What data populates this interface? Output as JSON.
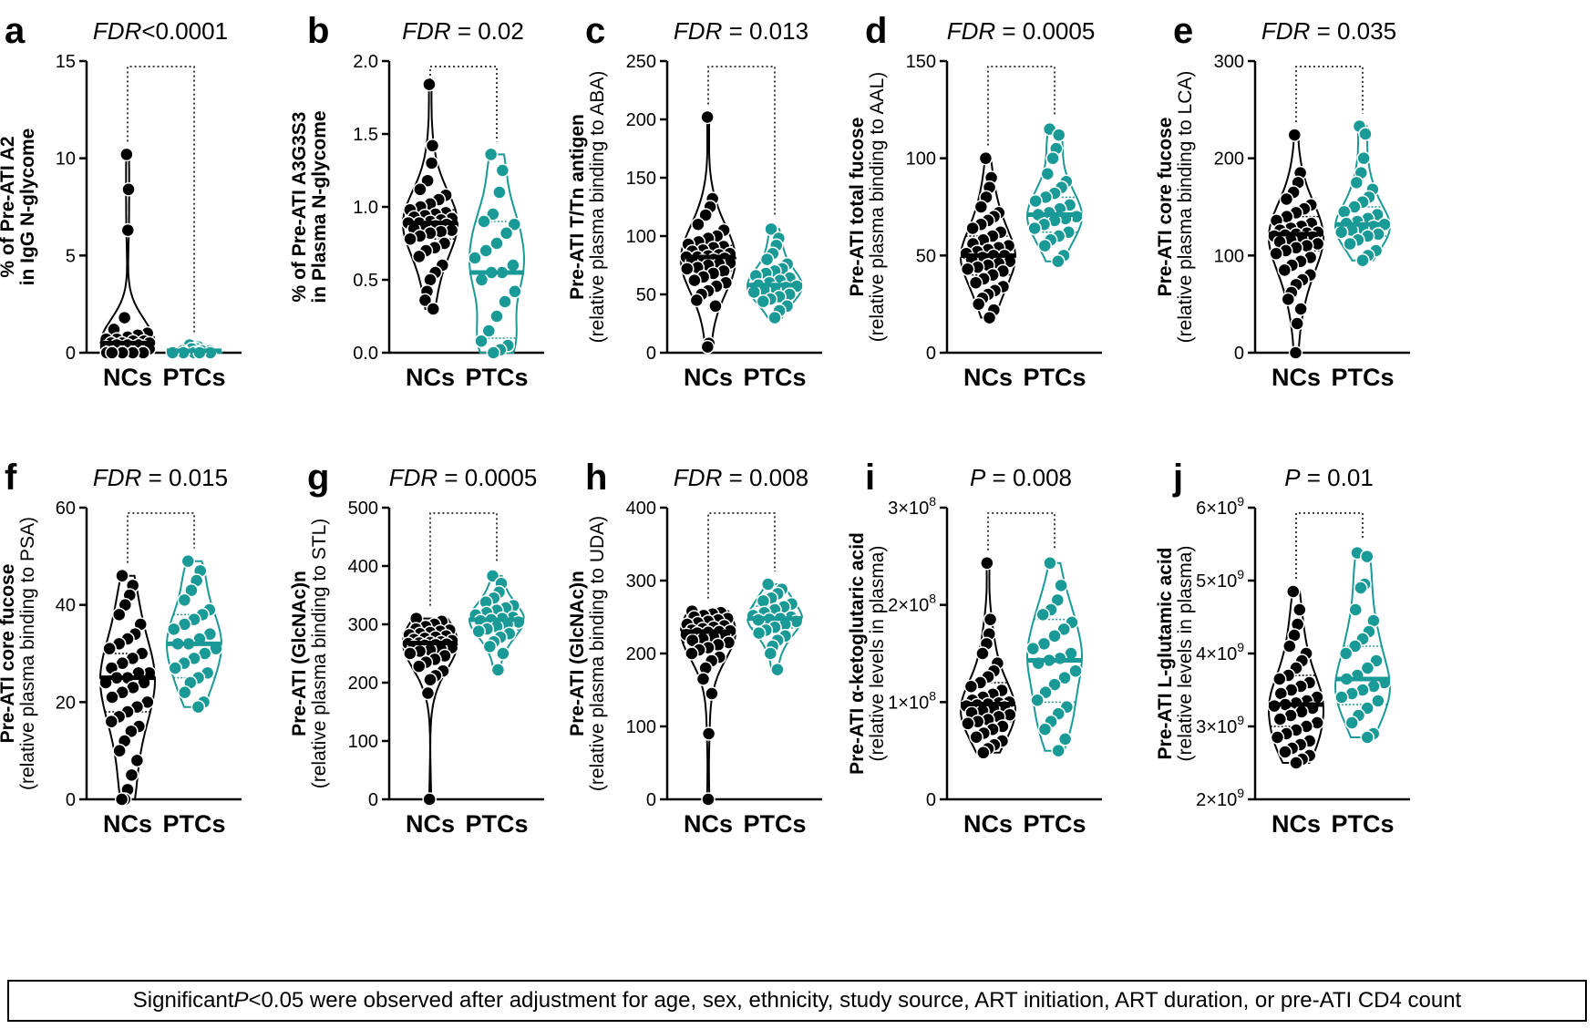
{
  "colors": {
    "nc": "#000000",
    "ptc": "#1a9a96",
    "axis": "#000000"
  },
  "footnote": {
    "prefix": "Significant ",
    "italic": "P",
    "rest": "<0.05 were observed after adjustment for age, sex, ethnicity, study source, ART initiation, ART duration, or pre-ATI CD4 count"
  },
  "chart_data": [
    {
      "type": "violin",
      "letter": "a",
      "title": "FDR<0.0001",
      "stat_label": "FDR",
      "stat_value": "<0.0001",
      "ylabel_lines": [
        "% of Pre-ATI A2",
        "in IgG N-glycome"
      ],
      "ylim": [
        0,
        15
      ],
      "yticks": [
        0,
        5,
        10,
        15
      ],
      "ytick_labels": [
        "0",
        "5",
        "10",
        "15"
      ],
      "categories": [
        "NCs",
        "PTCs"
      ],
      "series": [
        {
          "name": "NCs",
          "median": 0.5,
          "q1": 0.2,
          "q3": 0.9,
          "values": [
            10.2,
            8.4,
            6.3,
            1.8,
            1.2,
            1.0,
            0.9,
            0.8,
            0.7,
            0.7,
            0.6,
            0.6,
            0.5,
            0.5,
            0.5,
            0.4,
            0.4,
            0.4,
            0.3,
            0.3,
            0.3,
            0.2,
            0.2,
            0.2,
            0.1,
            0.1,
            0.1,
            0.0,
            0.0,
            0.0,
            0.0,
            0.0
          ]
        },
        {
          "name": "PTCs",
          "median": 0.1,
          "q1": 0.0,
          "q3": 0.2,
          "values": [
            0.4,
            0.3,
            0.2,
            0.2,
            0.1,
            0.1,
            0.1,
            0.0,
            0.0,
            0.0,
            0.0,
            0.0
          ]
        }
      ]
    },
    {
      "type": "violin",
      "letter": "b",
      "title": "FDR = 0.02",
      "stat_label": "FDR",
      "stat_value": " = 0.02",
      "ylabel_lines": [
        "% of Pre-ATI A3G3S3",
        "in Plasma N-glycome"
      ],
      "ylim": [
        0,
        2.0
      ],
      "yticks": [
        0,
        0.5,
        1.0,
        1.5,
        2.0
      ],
      "ytick_labels": [
        "0.0",
        "0.5",
        "1.0",
        "1.5",
        "2.0"
      ],
      "categories": [
        "NCs",
        "PTCs"
      ],
      "series": [
        {
          "name": "NCs",
          "median": 0.89,
          "q1": 0.78,
          "q3": 0.98,
          "values": [
            1.84,
            1.42,
            1.3,
            1.18,
            1.12,
            1.08,
            1.05,
            1.02,
            1.0,
            0.98,
            0.96,
            0.95,
            0.94,
            0.93,
            0.92,
            0.91,
            0.9,
            0.89,
            0.89,
            0.88,
            0.87,
            0.86,
            0.85,
            0.84,
            0.83,
            0.82,
            0.8,
            0.78,
            0.75,
            0.72,
            0.7,
            0.66,
            0.6,
            0.55,
            0.5,
            0.42,
            0.36,
            0.3
          ]
        },
        {
          "name": "PTCs",
          "median": 0.55,
          "q1": 0.1,
          "q3": 0.9,
          "values": [
            1.36,
            1.25,
            1.1,
            0.95,
            0.9,
            0.88,
            0.82,
            0.75,
            0.7,
            0.65,
            0.6,
            0.55,
            0.55,
            0.5,
            0.42,
            0.35,
            0.25,
            0.15,
            0.08,
            0.05,
            0.02,
            0.0
          ]
        }
      ]
    },
    {
      "type": "violin",
      "letter": "c",
      "title": "FDR = 0.013",
      "stat_label": "FDR",
      "stat_value": " = 0.013",
      "ylabel_lines": [
        "Pre-ATI T/Tn antigen",
        "(relative plasma binding to ABA)"
      ],
      "ylim": [
        0,
        250
      ],
      "yticks": [
        0,
        50,
        100,
        150,
        200,
        250
      ],
      "ytick_labels": [
        "0",
        "50",
        "100",
        "150",
        "200",
        "250"
      ],
      "categories": [
        "NCs",
        "PTCs"
      ],
      "series": [
        {
          "name": "NCs",
          "median": 82,
          "q1": 70,
          "q3": 92,
          "values": [
            202,
            132,
            125,
            118,
            110,
            105,
            100,
            98,
            95,
            93,
            91,
            90,
            88,
            87,
            85,
            84,
            83,
            82,
            82,
            81,
            80,
            79,
            78,
            77,
            76,
            75,
            73,
            72,
            70,
            68,
            65,
            62,
            60,
            57,
            53,
            50,
            45,
            40,
            8,
            5
          ]
        },
        {
          "name": "PTCs",
          "median": 58,
          "q1": 48,
          "q3": 68,
          "values": [
            106,
            98,
            92,
            85,
            80,
            76,
            72,
            70,
            68,
            66,
            64,
            62,
            60,
            58,
            57,
            56,
            55,
            54,
            52,
            50,
            48,
            46,
            44,
            40,
            36,
            30
          ]
        }
      ]
    },
    {
      "type": "violin",
      "letter": "d",
      "title": "FDR = 0.0005",
      "stat_label": "FDR",
      "stat_value": " = 0.0005",
      "ylabel_lines": [
        "Pre-ATI total fucose",
        "(relative plasma binding to AAL)"
      ],
      "ylim": [
        0,
        150
      ],
      "yticks": [
        0,
        50,
        100,
        150
      ],
      "ytick_labels": [
        "0",
        "50",
        "100",
        "150"
      ],
      "categories": [
        "NCs",
        "PTCs"
      ],
      "series": [
        {
          "name": "NCs",
          "median": 50,
          "q1": 40,
          "q3": 60,
          "values": [
            100,
            90,
            85,
            80,
            75,
            72,
            70,
            68,
            66,
            64,
            62,
            60,
            58,
            56,
            55,
            54,
            53,
            52,
            51,
            50,
            50,
            49,
            48,
            47,
            46,
            45,
            44,
            43,
            42,
            40,
            38,
            36,
            34,
            32,
            30,
            28,
            25,
            22,
            18
          ]
        },
        {
          "name": "PTCs",
          "median": 71,
          "q1": 62,
          "q3": 80,
          "values": [
            115,
            112,
            105,
            100,
            92,
            88,
            85,
            82,
            80,
            78,
            76,
            74,
            72,
            71,
            70,
            69,
            68,
            66,
            64,
            62,
            60,
            58,
            55,
            50,
            47
          ]
        }
      ]
    },
    {
      "type": "violin",
      "letter": "e",
      "title": "FDR = 0.035",
      "stat_label": "FDR",
      "stat_value": " = 0.035",
      "ylabel_lines": [
        "Pre-ATI core fucose",
        "(relative plasma binding to LCA)"
      ],
      "ylim": [
        0,
        300
      ],
      "yticks": [
        0,
        100,
        200,
        300
      ],
      "ytick_labels": [
        "0",
        "100",
        "200",
        "300"
      ],
      "categories": [
        "NCs",
        "PTCs"
      ],
      "series": [
        {
          "name": "NCs",
          "median": 122,
          "q1": 105,
          "q3": 140,
          "values": [
            224,
            185,
            175,
            165,
            158,
            152,
            148,
            144,
            140,
            136,
            133,
            130,
            128,
            126,
            124,
            123,
            122,
            121,
            120,
            119,
            118,
            116,
            114,
            112,
            110,
            108,
            105,
            102,
            98,
            94,
            90,
            85,
            80,
            75,
            70,
            62,
            55,
            45,
            30,
            0
          ]
        },
        {
          "name": "PTCs",
          "median": 132,
          "q1": 120,
          "q3": 150,
          "values": [
            233,
            225,
            200,
            185,
            175,
            168,
            160,
            155,
            150,
            145,
            142,
            138,
            135,
            133,
            132,
            130,
            128,
            126,
            124,
            122,
            120,
            116,
            112,
            105,
            100,
            95
          ]
        }
      ]
    },
    {
      "type": "violin",
      "letter": "f",
      "title": "FDR = 0.015",
      "stat_label": "FDR",
      "stat_value": " = 0.015",
      "ylabel_lines": [
        "Pre-ATI core fucose",
        "(relative plasma binding to PSA)"
      ],
      "ylim": [
        0,
        60
      ],
      "yticks": [
        0,
        20,
        40,
        60
      ],
      "ytick_labels": [
        "0",
        "20",
        "40",
        "60"
      ],
      "categories": [
        "NCs",
        "PTCs"
      ],
      "series": [
        {
          "name": "NCs",
          "median": 25,
          "q1": 18,
          "q3": 30,
          "values": [
            46,
            44,
            42,
            40,
            38,
            36,
            34,
            33,
            32,
            31,
            30,
            29,
            28,
            27,
            26,
            26,
            25,
            25,
            24,
            24,
            23,
            22,
            21,
            20,
            19,
            18,
            17,
            16,
            15,
            14,
            12,
            10,
            8,
            5,
            2,
            0,
            0
          ]
        },
        {
          "name": "PTCs",
          "median": 32,
          "q1": 25,
          "q3": 38,
          "values": [
            49,
            47,
            45,
            43,
            41,
            39,
            38,
            37,
            36,
            35,
            34,
            33,
            32,
            32,
            31,
            30,
            29,
            28,
            27,
            26,
            25,
            24,
            22,
            20,
            19
          ]
        }
      ]
    },
    {
      "type": "violin",
      "letter": "g",
      "title": "FDR = 0.0005",
      "stat_label": "FDR",
      "stat_value": " = 0.0005",
      "ylabel_lines": [
        "Pre-ATI (GlcNAc)n",
        "(relative plasma binding to STL)"
      ],
      "ylim": [
        0,
        500
      ],
      "yticks": [
        0,
        100,
        200,
        300,
        400,
        500
      ],
      "ytick_labels": [
        "0",
        "100",
        "200",
        "300",
        "400",
        "500"
      ],
      "categories": [
        "NCs",
        "PTCs"
      ],
      "series": [
        {
          "name": "NCs",
          "median": 268,
          "q1": 255,
          "q3": 285,
          "values": [
            310,
            305,
            300,
            296,
            292,
            290,
            288,
            286,
            284,
            282,
            280,
            278,
            276,
            274,
            272,
            270,
            269,
            268,
            267,
            266,
            265,
            264,
            262,
            260,
            258,
            256,
            254,
            250,
            246,
            240,
            235,
            228,
            220,
            212,
            205,
            182,
            0
          ]
        },
        {
          "name": "PTCs",
          "median": 308,
          "q1": 290,
          "q3": 325,
          "values": [
            383,
            370,
            355,
            345,
            338,
            332,
            328,
            324,
            320,
            316,
            312,
            310,
            308,
            306,
            304,
            300,
            296,
            292,
            288,
            284,
            278,
            270,
            262,
            250,
            222
          ]
        }
      ]
    },
    {
      "type": "violin",
      "letter": "h",
      "title": "FDR = 0.008",
      "stat_label": "FDR",
      "stat_value": " = 0.008",
      "ylabel_lines": [
        "Pre-ATI (GlcNAc)n",
        "(relative plasma binding to UDA)"
      ],
      "ylim": [
        0,
        400
      ],
      "yticks": [
        0,
        100,
        200,
        300,
        400
      ],
      "ytick_labels": [
        "0",
        "100",
        "200",
        "300",
        "400"
      ],
      "categories": [
        "NCs",
        "PTCs"
      ],
      "series": [
        {
          "name": "NCs",
          "median": 230,
          "q1": 215,
          "q3": 245,
          "values": [
            258,
            256,
            254,
            252,
            250,
            248,
            246,
            244,
            242,
            240,
            238,
            236,
            234,
            232,
            231,
            230,
            229,
            228,
            226,
            224,
            222,
            220,
            218,
            215,
            212,
            208,
            205,
            200,
            195,
            190,
            180,
            165,
            145,
            90,
            0
          ]
        },
        {
          "name": "PTCs",
          "median": 248,
          "q1": 235,
          "q3": 265,
          "values": [
            295,
            288,
            282,
            276,
            272,
            268,
            264,
            260,
            256,
            252,
            250,
            248,
            247,
            246,
            244,
            240,
            236,
            232,
            228,
            224,
            218,
            210,
            200,
            178
          ]
        }
      ]
    },
    {
      "type": "violin",
      "letter": "i",
      "title": "P = 0.008",
      "stat_label": "P",
      "stat_value": " = 0.008",
      "ylabel_lines": [
        "Pre-ATI α-ketoglutaric acid",
        "(relative levels in plasma)"
      ],
      "ylim": [
        0,
        300000000
      ],
      "yticks": [
        0,
        100000000,
        200000000,
        300000000
      ],
      "ytick_labels": [
        "0",
        "1×10^8",
        "2×10^8",
        "3×10^8"
      ],
      "categories": [
        "NCs",
        "PTCs"
      ],
      "series": [
        {
          "name": "NCs",
          "median": 98000000,
          "q1": 80000000,
          "q3": 120000000,
          "values": [
            243000000,
            185000000,
            170000000,
            160000000,
            150000000,
            140000000,
            132000000,
            126000000,
            120000000,
            116000000,
            112000000,
            108000000,
            105000000,
            102000000,
            100000000,
            99000000,
            98000000,
            97000000,
            96000000,
            95000000,
            93000000,
            91000000,
            89000000,
            87000000,
            85000000,
            82000000,
            80000000,
            78000000,
            75000000,
            72000000,
            68000000,
            64000000,
            60000000,
            56000000,
            52000000,
            48000000
          ]
        },
        {
          "name": "PTCs",
          "median": 143000000,
          "q1": 100000000,
          "q3": 185000000,
          "values": [
            243000000,
            220000000,
            205000000,
            195000000,
            190000000,
            182000000,
            175000000,
            168000000,
            160000000,
            155000000,
            150000000,
            145000000,
            143000000,
            140000000,
            132000000,
            125000000,
            118000000,
            110000000,
            102000000,
            95000000,
            88000000,
            80000000,
            72000000,
            62000000,
            50000000
          ]
        }
      ]
    },
    {
      "type": "violin",
      "letter": "j",
      "title": "P = 0.01",
      "stat_label": "P",
      "stat_value": " = 0.01",
      "ylabel_lines": [
        "Pre-ATI L-glutamic acid",
        "(relative levels in plasma)"
      ],
      "ylim": [
        2000000000,
        6000000000
      ],
      "yticks": [
        2000000000,
        3000000000,
        4000000000,
        5000000000,
        6000000000
      ],
      "ytick_labels": [
        "2×10^9",
        "3×10^9",
        "4×10^9",
        "5×10^9",
        "6×10^9"
      ],
      "categories": [
        "NCs",
        "PTCs"
      ],
      "series": [
        {
          "name": "NCs",
          "median": 3300000000,
          "q1": 3000000000,
          "q3": 3700000000,
          "values": [
            4850000000,
            4600000000,
            4400000000,
            4250000000,
            4100000000,
            4000000000,
            3900000000,
            3800000000,
            3700000000,
            3650000000,
            3600000000,
            3550000000,
            3500000000,
            3450000000,
            3400000000,
            3350000000,
            3320000000,
            3300000000,
            3280000000,
            3250000000,
            3200000000,
            3150000000,
            3100000000,
            3050000000,
            3000000000,
            2950000000,
            2900000000,
            2850000000,
            2800000000,
            2750000000,
            2700000000,
            2650000000,
            2600000000,
            2550000000,
            2500000000
          ]
        },
        {
          "name": "PTCs",
          "median": 3650000000,
          "q1": 3300000000,
          "q3": 4100000000,
          "values": [
            5380000000,
            5330000000,
            4950000000,
            4900000000,
            4600000000,
            4450000000,
            4300000000,
            4200000000,
            4100000000,
            4000000000,
            3900000000,
            3800000000,
            3700000000,
            3650000000,
            3600000000,
            3550000000,
            3500000000,
            3450000000,
            3400000000,
            3350000000,
            3250000000,
            3150000000,
            3050000000,
            2900000000,
            2850000000
          ]
        }
      ]
    }
  ]
}
